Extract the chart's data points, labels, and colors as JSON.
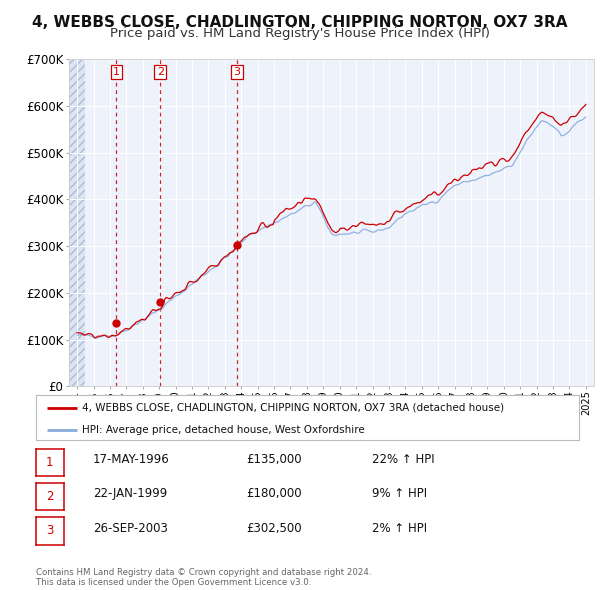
{
  "title": "4, WEBBS CLOSE, CHADLINGTON, CHIPPING NORTON, OX7 3RA",
  "subtitle": "Price paid vs. HM Land Registry's House Price Index (HPI)",
  "title_fontsize": 11,
  "subtitle_fontsize": 9.5,
  "ylim": [
    0,
    700000
  ],
  "yticks": [
    0,
    100000,
    200000,
    300000,
    400000,
    500000,
    600000,
    700000
  ],
  "xlim_start": 1993.5,
  "xlim_end": 2025.5,
  "sale_color": "#cc0000",
  "hpi_color": "#88aadd",
  "background_color": "#eef2fb",
  "grid_color": "#ffffff",
  "sale_label": "4, WEBBS CLOSE, CHADLINGTON, CHIPPING NORTON, OX7 3RA (detached house)",
  "hpi_label": "HPI: Average price, detached house, West Oxfordshire",
  "transactions": [
    {
      "num": 1,
      "date": "17-MAY-1996",
      "price": 135000,
      "hpi_pct": "22%",
      "x": 1996.38
    },
    {
      "num": 2,
      "date": "22-JAN-1999",
      "price": 180000,
      "hpi_pct": "9%",
      "x": 1999.06
    },
    {
      "num": 3,
      "date": "26-SEP-2003",
      "price": 302500,
      "hpi_pct": "2%",
      "x": 2003.73
    }
  ],
  "footer_line1": "Contains HM Land Registry data © Crown copyright and database right 2024.",
  "footer_line2": "This data is licensed under the Open Government Licence v3.0.",
  "legend_box_color": "#ffffff",
  "legend_border_color": "#bbbbbb"
}
